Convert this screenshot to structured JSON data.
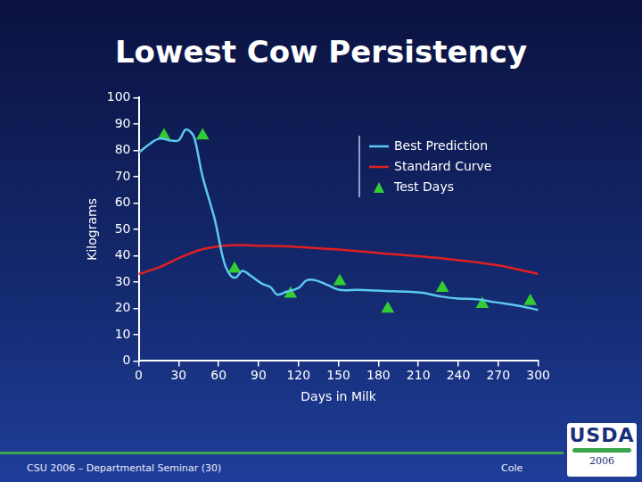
{
  "chart_data": {
    "type": "line",
    "title": "Lowest Cow Persistency",
    "x_label": "Days in Milk",
    "y_label": "Kilograms",
    "xlim": [
      0,
      300
    ],
    "xticks": [
      0,
      30,
      60,
      90,
      120,
      150,
      180,
      210,
      240,
      270,
      300
    ],
    "ylim": [
      0,
      100
    ],
    "yticks": [
      0,
      10,
      20,
      30,
      40,
      50,
      60,
      70,
      80,
      90,
      100
    ],
    "grid": false,
    "legend": "upper right",
    "series": [
      {
        "name": "Best Prediction",
        "color": "#5bc8f0",
        "marker": "none",
        "line_style": "solid",
        "x": [
          0,
          9,
          16,
          23,
          30,
          35,
          39,
          42,
          48,
          57,
          64,
          69,
          73,
          78,
          84,
          92,
          99,
          104,
          111,
          120,
          126,
          133,
          142,
          151,
          164,
          185,
          202,
          213,
          227,
          240,
          254,
          268,
          286,
          300
        ],
        "values": [
          79.1,
          82.7,
          84.5,
          83.8,
          83.8,
          87.8,
          87,
          84.5,
          70,
          54,
          37.8,
          32.4,
          31.7,
          34.2,
          32.4,
          29.5,
          28,
          25.2,
          26.3,
          27.7,
          30.6,
          30.6,
          28.8,
          27,
          27,
          26.6,
          26.3,
          25.9,
          24.5,
          23.7,
          23.4,
          22.3,
          20.9,
          19.4
        ]
      },
      {
        "name": "Standard Curve",
        "color": "#e02020",
        "marker": "none",
        "line_style": "solid",
        "x": [
          0,
          15,
          30,
          45,
          60,
          75,
          90,
          120,
          150,
          180,
          210,
          240,
          270,
          300
        ],
        "values": [
          33,
          35.5,
          39,
          42,
          43.5,
          44,
          43.8,
          43.3,
          42.3,
          41,
          39.8,
          38.3,
          36.3,
          33
        ]
      },
      {
        "name": "Test Days",
        "color": "#33cc33",
        "marker": "triangle",
        "line_style": "none",
        "x": [
          19,
          48,
          72,
          114,
          151,
          187,
          228,
          258,
          294
        ],
        "values": [
          85.6,
          85.6,
          35,
          25.5,
          30.2,
          19.8,
          27.7,
          21.6,
          22.7
        ]
      }
    ]
  },
  "footer": {
    "left": "CSU 2006 – Departmental Seminar (30)",
    "right": "Cole",
    "logo": "USDA",
    "logo_year": "2006"
  }
}
